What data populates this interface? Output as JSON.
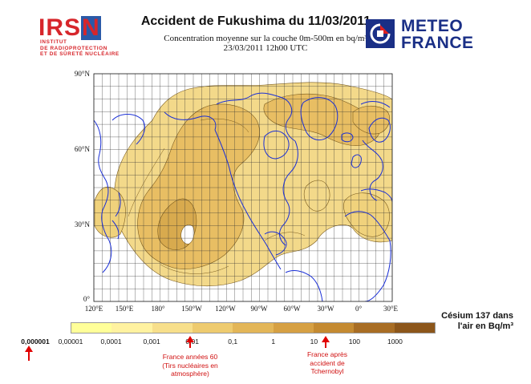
{
  "header": {
    "irsn_logo_word": "IRSN",
    "irsn_sub": [
      "INSTITUT",
      "DE RADIOPROTECTION",
      "ET DE SÛRETÉ NUCLÉAIRE"
    ],
    "title": "Accident de Fukushima du 11/03/2011",
    "subtitle_line1": "Concentration moyenne sur la couche 0m-500m en bq/m³",
    "subtitle_line2": "23/03/2011 12h00 UTC",
    "meteo_logo_line1": "METEO",
    "meteo_logo_line2": "FRANCE"
  },
  "map": {
    "lat_labels": [
      "90°N",
      "60°N",
      "30°N",
      "0°"
    ],
    "lon_labels": [
      "120°E",
      "150°E",
      "180°",
      "150°W",
      "120°W",
      "90°W",
      "60°W",
      "30°W",
      "0°",
      "30°E"
    ],
    "colors": {
      "coast": "#1a2fd6",
      "grid": "#222222",
      "plume_light": "#f3d98a",
      "plume_mid": "#e8be63",
      "plume_dark": "#c99a3c"
    }
  },
  "legend": {
    "title_line1": "Césium 137 dans",
    "title_line2": "l'air en Bq/m³",
    "outside_label": "0,000001",
    "tick_labels": [
      "0,00001",
      "0,0001",
      "0,001",
      "0,01",
      "0,1",
      "1",
      "10",
      "100",
      "1000"
    ],
    "colors": [
      "#ffff99",
      "#fff2a0",
      "#f7df8b",
      "#eecb6f",
      "#e3b658",
      "#d6a043",
      "#c48a31",
      "#a86d24",
      "#8c561a"
    ],
    "notes": {
      "france_60": [
        "France années 60",
        "(Tirs nucléaires en",
        "atmosphère)"
      ],
      "france_tchernobyl": [
        "France après",
        "accident de",
        "Tchernobyl"
      ]
    },
    "arrow_color": "#e00000"
  }
}
